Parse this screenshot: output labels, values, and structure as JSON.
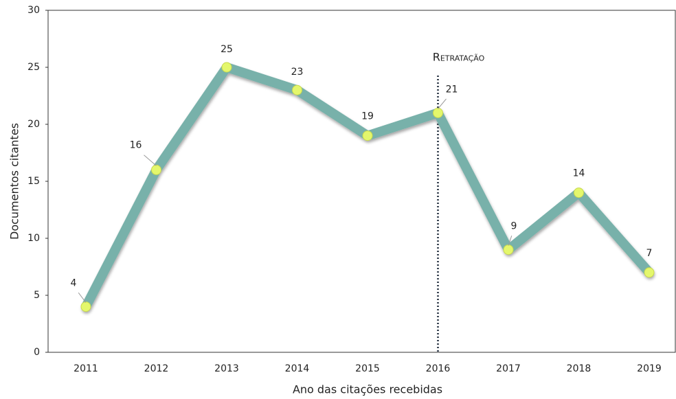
{
  "chart_data": {
    "type": "line",
    "categories": [
      "2011",
      "2012",
      "2013",
      "2014",
      "2015",
      "2016",
      "2017",
      "2018",
      "2019"
    ],
    "series": [
      {
        "name": "Documentos citantes",
        "color": "#78b1aa",
        "values": [
          4,
          16,
          25,
          23,
          19,
          21,
          9,
          14,
          7
        ]
      }
    ],
    "ylim": [
      0,
      30
    ],
    "yticks": [
      0,
      5,
      10,
      15,
      20,
      25,
      30
    ],
    "grid": false,
    "ylabel": "Documentos citantes",
    "xlabel": "Ano das citações recebidas",
    "annotation": {
      "text": "Retratação",
      "x": "2016"
    }
  }
}
